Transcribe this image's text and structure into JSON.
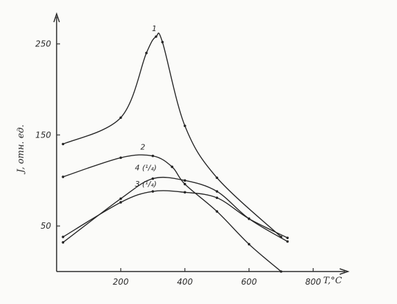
{
  "chart_data": {
    "type": "line",
    "title": "",
    "xlabel": "T,°C",
    "ylabel": "J, отн. ед.",
    "xlim": [
      0,
      900
    ],
    "ylim": [
      0,
      280
    ],
    "x_ticks": [
      200,
      400,
      600,
      800
    ],
    "y_ticks": [
      50,
      150,
      250
    ],
    "grid": false,
    "series": [
      {
        "name": "1",
        "label_text": "1",
        "x": [
          20,
          200,
          280,
          310,
          330,
          400,
          500,
          700
        ],
        "y": [
          140,
          169,
          240,
          258,
          252,
          160,
          103,
          38
        ]
      },
      {
        "name": "2",
        "label_text": "2",
        "x": [
          20,
          200,
          300,
          360,
          400,
          500,
          600,
          700
        ],
        "y": [
          104,
          125,
          127,
          115,
          96,
          66,
          30,
          0
        ]
      },
      {
        "name": "4 (1/4)",
        "label_text": "4 (¹/₄)",
        "x": [
          20,
          200,
          300,
          400,
          500,
          600,
          720
        ],
        "y": [
          32,
          80,
          102,
          100,
          88,
          58,
          33
        ]
      },
      {
        "name": "3 (1/4)",
        "label_text": "3 (¹/₄)",
        "x": [
          20,
          200,
          300,
          400,
          500,
          600,
          720
        ],
        "y": [
          38,
          76,
          88,
          87,
          81,
          58,
          37
        ]
      }
    ]
  }
}
